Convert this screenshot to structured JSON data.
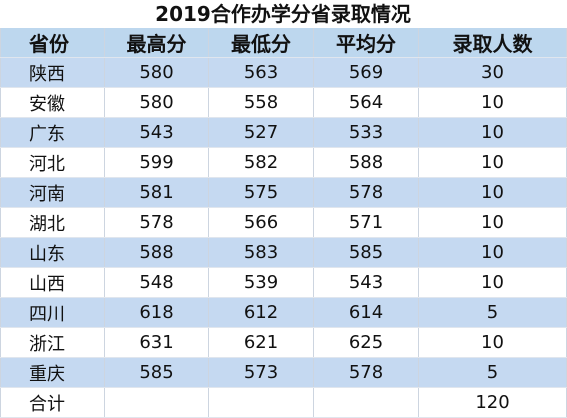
{
  "title": "2019合作办学分省录取情况",
  "table": {
    "header": [
      "省份",
      "最高分",
      "最低分",
      "平均分",
      "录取人数"
    ],
    "rows": [
      [
        "陕西",
        580,
        563,
        569,
        30
      ],
      [
        "安徽",
        580,
        558,
        564,
        10
      ],
      [
        "广东",
        543,
        527,
        533,
        10
      ],
      [
        "河北",
        599,
        582,
        588,
        10
      ],
      [
        "河南",
        581,
        575,
        578,
        10
      ],
      [
        "湖北",
        578,
        566,
        571,
        10
      ],
      [
        "山东",
        588,
        583,
        585,
        10
      ],
      [
        "山西",
        548,
        539,
        543,
        10
      ],
      [
        "四川",
        618,
        612,
        614,
        5
      ],
      [
        "浙江",
        631,
        621,
        625,
        10
      ],
      [
        "重庆",
        585,
        573,
        578,
        5
      ]
    ],
    "total": {
      "label": "合计",
      "count": 120
    }
  }
}
